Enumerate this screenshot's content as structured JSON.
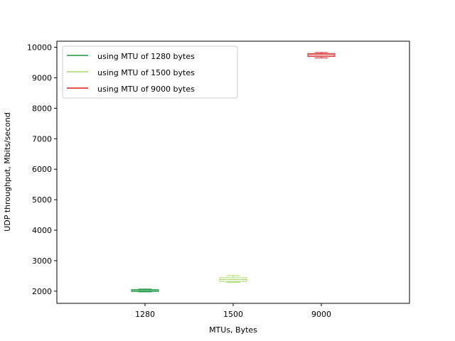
{
  "chart_data": {
    "type": "box",
    "xlabel": "MTUs, Bytes",
    "ylabel": "UDP throughput, Mbits/second",
    "categories": [
      "1280",
      "1500",
      "9000"
    ],
    "ylim": [
      1600,
      10200
    ],
    "yticks": [
      2000,
      3000,
      4000,
      5000,
      6000,
      7000,
      8000,
      9000,
      10000
    ],
    "grid": false,
    "legend_position": "top-left",
    "series": [
      {
        "name": "using MTU of 1280 bytes",
        "category": "1280",
        "color": "#1a9641",
        "whisker_low": 1975,
        "q1": 1990,
        "median": 2020,
        "q3": 2050,
        "whisker_high": 2070
      },
      {
        "name": "using MTU of 1500 bytes",
        "category": "1500",
        "color": "#a6d96a",
        "whisker_low": 2290,
        "q1": 2320,
        "median": 2380,
        "q3": 2440,
        "whisker_high": 2510
      },
      {
        "name": "using MTU of 9000 bytes",
        "category": "9000",
        "color": "#d7191c",
        "whisker_low": 9650,
        "q1": 9700,
        "median": 9750,
        "q3": 9790,
        "whisker_high": 9830
      }
    ]
  }
}
